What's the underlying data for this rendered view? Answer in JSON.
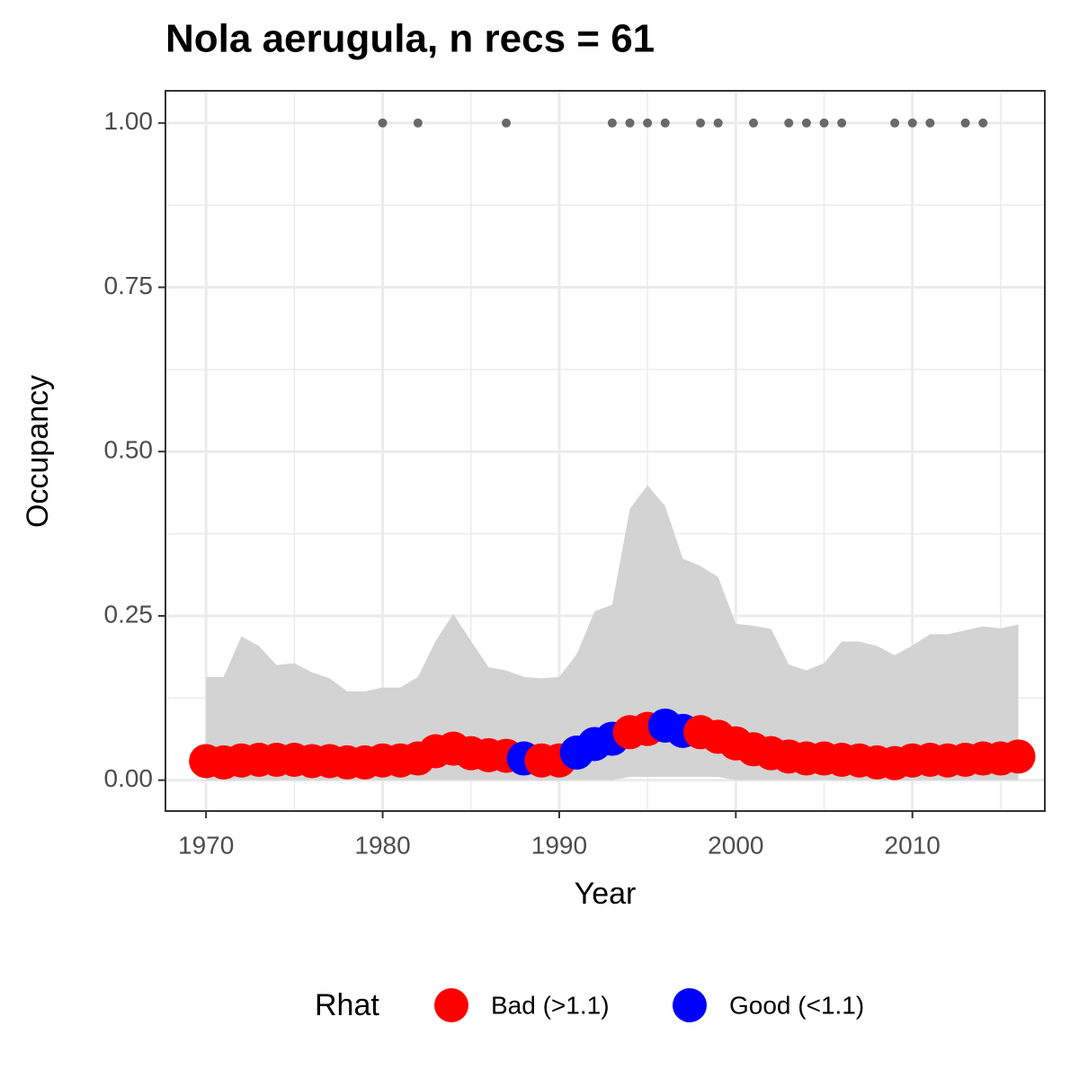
{
  "chart_data": {
    "type": "scatter",
    "title": "Nola aerugula, n recs = 61",
    "x_label": "Year",
    "y_label": "Occupancy",
    "xlim": [
      1967.7,
      2017.5
    ],
    "ylim": [
      -0.047,
      1.049
    ],
    "xticks": [
      1970,
      1980,
      1990,
      2000,
      2010
    ],
    "x_minor_ticks": [
      1975,
      1985,
      1995,
      2005,
      2015
    ],
    "yticks": [
      {
        "value": 0,
        "label": "0.00"
      },
      {
        "value": 0.25,
        "label": "0.25"
      },
      {
        "value": 0.5,
        "label": "0.50"
      },
      {
        "value": 0.75,
        "label": "0.75"
      },
      {
        "value": 1,
        "label": "1.00"
      }
    ],
    "y_minor_ticks": [
      0.125,
      0.375,
      0.625,
      0.875
    ],
    "grid": true,
    "ribbon": {
      "color": "#d3d3d3",
      "x": [
        1970,
        1971,
        1972,
        1973,
        1974,
        1975,
        1976,
        1977,
        1978,
        1979,
        1980,
        1981,
        1982,
        1983,
        1984,
        1985,
        1986,
        1987,
        1988,
        1989,
        1990,
        1991,
        1992,
        1993,
        1994,
        1995,
        1996,
        1997,
        1998,
        1999,
        2000,
        2001,
        2002,
        2003,
        2004,
        2005,
        2006,
        2007,
        2008,
        2009,
        2010,
        2011,
        2012,
        2013,
        2014,
        2015,
        2016
      ],
      "lower": [
        0,
        0,
        0,
        0,
        0,
        0,
        0,
        0,
        0,
        0,
        0,
        0,
        0,
        0,
        0,
        0,
        0,
        0,
        0,
        0,
        0,
        0,
        0,
        0,
        0.005,
        0.005,
        0.005,
        0.005,
        0.005,
        0.005,
        0,
        0,
        0,
        0,
        0,
        0,
        0,
        0,
        0,
        0,
        0,
        0,
        0,
        0,
        0,
        0,
        0
      ],
      "upper": [
        0.157,
        0.157,
        0.219,
        0.204,
        0.175,
        0.178,
        0.164,
        0.155,
        0.135,
        0.135,
        0.141,
        0.141,
        0.157,
        0.212,
        0.253,
        0.212,
        0.172,
        0.167,
        0.157,
        0.155,
        0.157,
        0.192,
        0.257,
        0.267,
        0.413,
        0.449,
        0.417,
        0.337,
        0.326,
        0.309,
        0.238,
        0.235,
        0.23,
        0.176,
        0.167,
        0.178,
        0.211,
        0.211,
        0.204,
        0.19,
        0.205,
        0.222,
        0.222,
        0.228,
        0.234,
        0.231,
        0.237
      ]
    },
    "records": {
      "color": "#696969",
      "x": [
        1980,
        1982,
        1987,
        1993,
        1994,
        1995,
        1996,
        1998,
        1999,
        2001,
        2003,
        2004,
        2005,
        2006,
        2009,
        2010,
        2011,
        2013,
        2014
      ],
      "values": [
        1,
        1,
        1,
        1,
        1,
        1,
        1,
        1,
        1,
        1,
        1,
        1,
        1,
        1,
        1,
        1,
        1,
        1,
        1
      ]
    },
    "legend": {
      "title": "Rhat",
      "position": "bottom"
    },
    "series": [
      {
        "name": "Bad (>1.1)",
        "color": "#ff0000",
        "x": [
          1970,
          1971,
          1972,
          1973,
          1974,
          1975,
          1976,
          1977,
          1978,
          1979,
          1980,
          1981,
          1982,
          1983,
          1984,
          1985,
          1986,
          1987,
          1989,
          1990,
          1994,
          1995,
          1998,
          1999,
          2000,
          2001,
          2002,
          2003,
          2004,
          2005,
          2006,
          2007,
          2008,
          2009,
          2010,
          2011,
          2012,
          2013,
          2014,
          2015,
          2016
        ],
        "values": [
          0.029,
          0.027,
          0.03,
          0.031,
          0.031,
          0.031,
          0.029,
          0.029,
          0.027,
          0.027,
          0.03,
          0.03,
          0.033,
          0.044,
          0.048,
          0.041,
          0.038,
          0.037,
          0.03,
          0.03,
          0.073,
          0.078,
          0.073,
          0.066,
          0.056,
          0.047,
          0.041,
          0.036,
          0.033,
          0.033,
          0.031,
          0.03,
          0.027,
          0.026,
          0.03,
          0.031,
          0.03,
          0.031,
          0.033,
          0.033,
          0.036
        ]
      },
      {
        "name": "Good (<1.1)",
        "color": "#0000ff",
        "x": [
          1988,
          1991,
          1992,
          1993,
          1996,
          1997
        ],
        "values": [
          0.033,
          0.042,
          0.055,
          0.063,
          0.083,
          0.075
        ]
      }
    ]
  }
}
